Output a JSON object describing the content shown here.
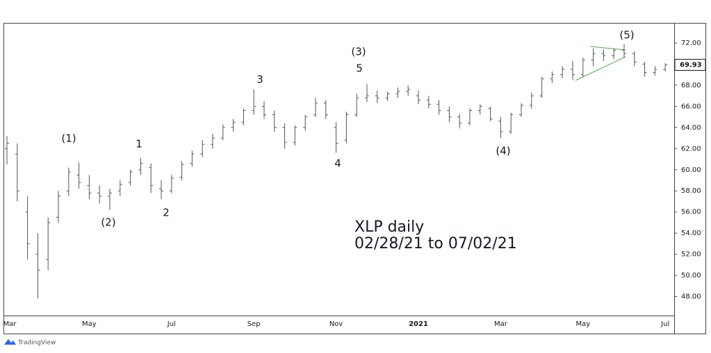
{
  "chart_data": {
    "type": "ohlc",
    "title": "XLP daily",
    "subtitle": "02/28/21 to 07/02/21",
    "brand": "TradingView",
    "categories": [
      "Mar",
      null,
      null,
      null,
      null,
      null,
      null,
      null,
      "May",
      null,
      null,
      null,
      null,
      null,
      null,
      null,
      "Jul",
      null,
      null,
      null,
      null,
      null,
      null,
      null,
      "Sep",
      null,
      null,
      null,
      null,
      null,
      null,
      null,
      "Nov",
      null,
      null,
      null,
      null,
      null,
      null,
      null,
      "2021",
      null,
      null,
      null,
      null,
      null,
      null,
      null,
      "Mar",
      null,
      null,
      null,
      null,
      null,
      null,
      null,
      "May",
      null,
      null,
      null,
      null,
      null,
      null,
      null,
      "Jul"
    ],
    "series": [
      {
        "name": "open",
        "color": "#50535e",
        "values": [
          62.0,
          61.5,
          56.0,
          52.0,
          51.5,
          55.5,
          58.0,
          59.5,
          58.5,
          57.8,
          57.5,
          58.0,
          58.8,
          60.0,
          60.2,
          58.2,
          58.0,
          59.3,
          60.6,
          61.5,
          62.4,
          63.0,
          64.0,
          64.5,
          65.6,
          66.0,
          65.2,
          64.0,
          62.6,
          64.0,
          65.2,
          66.3,
          64.0,
          62.8,
          65.2,
          66.8,
          67.0,
          66.8,
          67.2,
          67.4,
          67.0,
          66.6,
          66.2,
          65.6,
          65.0,
          64.4,
          65.6,
          65.8,
          64.6,
          63.6,
          65.2,
          66.1,
          67.0,
          68.6,
          69.0,
          69.5,
          69.0,
          70.4,
          71.0,
          70.8,
          71.3,
          71.0,
          70.0,
          69.2,
          69.5
        ]
      },
      {
        "name": "high",
        "color": "#50535e",
        "values": [
          63.2,
          62.5,
          57.5,
          54.0,
          55.5,
          58.0,
          60.2,
          60.7,
          59.5,
          58.5,
          58.2,
          59.0,
          60.0,
          61.1,
          60.6,
          59.0,
          59.5,
          60.8,
          61.8,
          62.8,
          63.4,
          64.3,
          64.8,
          65.8,
          67.6,
          66.5,
          65.6,
          64.4,
          64.2,
          65.2,
          66.8,
          66.6,
          64.5,
          65.5,
          67.2,
          68.1,
          67.5,
          67.4,
          67.8,
          68.0,
          67.5,
          67.0,
          66.6,
          66.0,
          65.3,
          65.8,
          66.2,
          66.0,
          65.0,
          65.4,
          66.3,
          67.3,
          68.8,
          69.3,
          69.8,
          70.3,
          70.6,
          71.5,
          71.4,
          71.5,
          71.9,
          71.2,
          70.2,
          69.8,
          70.1
        ]
      },
      {
        "name": "low",
        "color": "#50535e",
        "values": [
          60.5,
          57.0,
          51.5,
          47.8,
          50.5,
          55.0,
          57.5,
          58.2,
          57.2,
          56.8,
          56.2,
          57.5,
          58.5,
          59.5,
          57.8,
          57.2,
          57.8,
          59.0,
          60.3,
          61.2,
          62.0,
          62.8,
          63.6,
          64.2,
          65.2,
          64.8,
          63.6,
          62.0,
          62.3,
          63.7,
          65.0,
          64.8,
          61.6,
          62.5,
          65.0,
          66.4,
          66.3,
          66.5,
          66.8,
          67.0,
          66.2,
          65.8,
          65.2,
          64.5,
          63.9,
          64.2,
          65.2,
          64.6,
          63.0,
          63.4,
          65.0,
          65.8,
          66.8,
          68.2,
          68.7,
          68.5,
          68.8,
          69.8,
          70.3,
          70.5,
          70.6,
          69.8,
          68.8,
          68.9,
          69.3
        ]
      },
      {
        "name": "close",
        "color": "#50535e",
        "values": [
          62.5,
          58.0,
          53.0,
          50.5,
          55.0,
          57.5,
          59.8,
          58.8,
          57.8,
          57.5,
          57.8,
          58.6,
          59.8,
          60.6,
          58.5,
          58.0,
          59.2,
          60.5,
          61.5,
          62.4,
          63.0,
          64.0,
          64.5,
          65.6,
          66.0,
          65.2,
          64.0,
          62.6,
          64.0,
          65.0,
          66.3,
          65.2,
          62.5,
          65.2,
          66.8,
          67.0,
          66.8,
          67.2,
          67.4,
          67.6,
          66.6,
          66.2,
          65.6,
          65.0,
          64.4,
          65.6,
          66.0,
          64.8,
          63.6,
          65.2,
          66.1,
          67.0,
          68.6,
          69.0,
          69.5,
          69.0,
          70.4,
          71.0,
          70.8,
          71.3,
          71.0,
          70.2,
          69.2,
          69.5,
          69.93
        ]
      }
    ],
    "current_price": 69.93,
    "ylim": [
      46.2,
      73.9
    ],
    "yticks": [
      {
        "value": 48,
        "label": "48.00"
      },
      {
        "value": 50,
        "label": "50.00"
      },
      {
        "value": 52,
        "label": "52.00"
      },
      {
        "value": 54,
        "label": "54.00"
      },
      {
        "value": 56,
        "label": "56.00"
      },
      {
        "value": 58,
        "label": "58.00"
      },
      {
        "value": 60,
        "label": "60.00"
      },
      {
        "value": 62,
        "label": "62.00"
      },
      {
        "value": 64,
        "label": "64.00"
      },
      {
        "value": 66,
        "label": "66.00"
      },
      {
        "value": 68,
        "label": "68.00"
      },
      {
        "value": 70,
        "label": "70.00"
      },
      {
        "value": 72,
        "label": "72.00"
      }
    ],
    "annotations": [
      "(1)",
      "1",
      "(2)",
      "2",
      "3",
      "4",
      "(3)",
      "5",
      "(4)",
      "(5)"
    ]
  }
}
